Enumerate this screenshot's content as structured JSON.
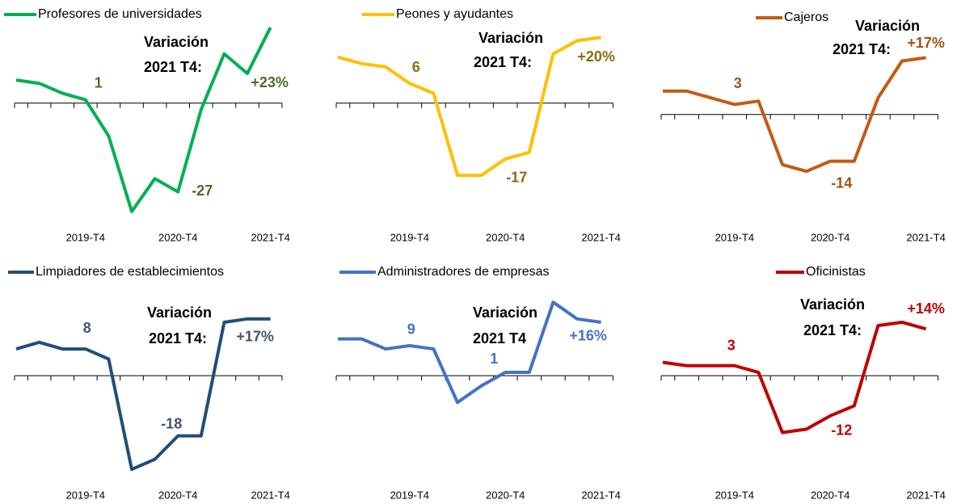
{
  "chart_data": [
    {
      "type": "line",
      "categories": [
        null,
        null,
        null,
        "2019-T4",
        null,
        null,
        null,
        "2020-T4",
        null,
        null,
        null,
        "2021-T4"
      ],
      "series": [
        {
          "name": "Profesores de universidades",
          "color": "#00b050",
          "values": [
            7,
            6,
            3,
            1,
            -10,
            -33,
            -23,
            -27,
            -2,
            15,
            9,
            23
          ],
          "value_labels": [
            null,
            null,
            null,
            "1",
            null,
            null,
            null,
            "-27",
            null,
            null,
            null,
            "+23%"
          ]
        }
      ],
      "label_color": "#4e6b2a",
      "annotations": [
        "Variación",
        "2021 T4:"
      ],
      "ylim": [
        -35,
        24
      ]
    },
    {
      "type": "line",
      "categories": [
        null,
        null,
        null,
        "2019-T4",
        null,
        null,
        null,
        "2020-T4",
        null,
        null,
        null,
        "2021-T4"
      ],
      "series": [
        {
          "name": "Peones y ayudantes",
          "color": "#ffc000",
          "values": [
            14,
            12,
            11,
            6,
            3,
            -22,
            -22,
            -17,
            -15,
            15,
            19,
            20
          ],
          "value_labels": [
            null,
            null,
            null,
            "6",
            null,
            null,
            null,
            "-17",
            null,
            null,
            null,
            "+20%"
          ]
        }
      ],
      "label_color": "#8a6d10",
      "annotations": [
        "Variación",
        "2021 T4:"
      ],
      "ylim": [
        -35,
        24
      ]
    },
    {
      "type": "line",
      "categories": [
        null,
        null,
        null,
        "2019-T4",
        null,
        null,
        null,
        "2020-T4",
        null,
        null,
        null,
        "2021-T4"
      ],
      "series": [
        {
          "name": "Cajeros",
          "color": "#c55a11",
          "values": [
            7,
            7,
            5,
            3,
            4,
            -15,
            -17,
            -14,
            -14,
            5,
            16,
            17
          ],
          "value_labels": [
            null,
            null,
            null,
            "3",
            null,
            null,
            null,
            "-14",
            null,
            null,
            null,
            "+17%"
          ]
        }
      ],
      "label_color": "#a0521a",
      "annotations": [
        "Variación",
        "2021 T4:"
      ],
      "ylim": [
        -31,
        27
      ]
    },
    {
      "type": "line",
      "categories": [
        null,
        null,
        null,
        "2019-T4",
        null,
        null,
        null,
        "2020-T4",
        null,
        null,
        null,
        "2021-T4"
      ],
      "series": [
        {
          "name": "Limpiadores de establecimientos",
          "color": "#1f4e79",
          "values": [
            8,
            10,
            8,
            8,
            5,
            -28,
            -25,
            -18,
            -18,
            16,
            17,
            17
          ],
          "value_labels": [
            null,
            null,
            null,
            "8",
            null,
            null,
            null,
            "-18",
            null,
            null,
            null,
            "+17%"
          ]
        }
      ],
      "label_color": "#44546a",
      "annotations": [
        "Variación",
        "2021 T4:"
      ],
      "ylim": [
        -35,
        23
      ]
    },
    {
      "type": "line",
      "categories": [
        null,
        null,
        null,
        "2019-T4",
        null,
        null,
        null,
        "2020-T4",
        null,
        null,
        null,
        "2021-T4"
      ],
      "series": [
        {
          "name": "Administradores de empresas",
          "color": "#4472c4",
          "values": [
            11,
            11,
            8,
            9,
            8,
            -8,
            -3,
            1,
            1,
            22,
            17,
            16
          ],
          "value_labels": [
            null,
            null,
            null,
            "9",
            null,
            null,
            null,
            "1",
            null,
            null,
            null,
            "+16%"
          ]
        }
      ],
      "label_color": "#4472c4",
      "annotations": [
        "Variación",
        "2021 T4"
      ],
      "ylim": [
        -35,
        23
      ]
    },
    {
      "type": "line",
      "categories": [
        null,
        null,
        null,
        "2019-T4",
        null,
        null,
        null,
        "2020-T4",
        null,
        null,
        null,
        "2021-T4"
      ],
      "series": [
        {
          "name": "Oficinistas",
          "color": "#c00000",
          "values": [
            4,
            3,
            3,
            3,
            1,
            -17,
            -16,
            -12,
            -9,
            15,
            16,
            14
          ],
          "value_labels": [
            null,
            null,
            null,
            "3",
            null,
            null,
            null,
            "-12",
            null,
            null,
            null,
            "+14%"
          ]
        }
      ],
      "label_color": "#c00000",
      "annotations": [
        "Variación",
        "2021 T4:"
      ],
      "ylim": [
        -35,
        23
      ]
    }
  ]
}
